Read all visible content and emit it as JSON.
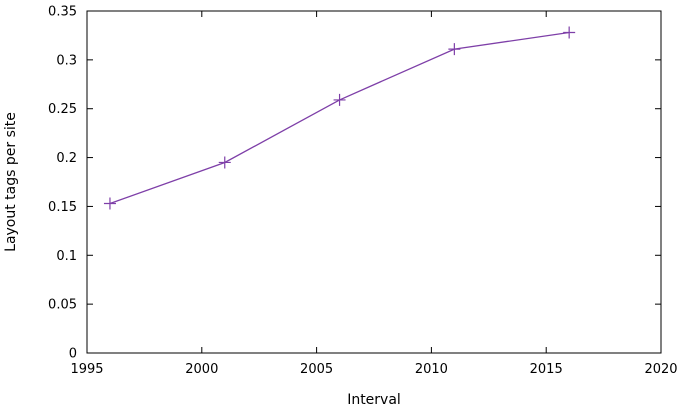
{
  "chart_data": {
    "type": "line",
    "title": "",
    "xlabel": "Interval",
    "ylabel": "Layout tags per site",
    "xlim": [
      1995,
      2020
    ],
    "ylim": [
      0,
      0.35
    ],
    "xticks": [
      "1995",
      "2000",
      "2005",
      "2010",
      "2015",
      "2020"
    ],
    "yticks": [
      "0",
      "0.05",
      "0.1",
      "0.15",
      "0.2",
      "0.25",
      "0.3",
      "0.35"
    ],
    "grid": false,
    "legend": "none",
    "series": [
      {
        "color": "#7e3fa8",
        "marker": "plus",
        "x": [
          1996,
          2001,
          2006,
          2011,
          2016
        ],
        "y": [
          0.153,
          0.195,
          0.259,
          0.311,
          0.328
        ]
      }
    ]
  }
}
